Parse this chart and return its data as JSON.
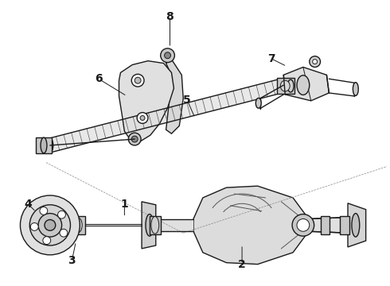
{
  "bg_color": "#ffffff",
  "line_color": "#1a1a1a",
  "lw": 1.0,
  "fig_width": 4.9,
  "fig_height": 3.6,
  "dpi": 100
}
